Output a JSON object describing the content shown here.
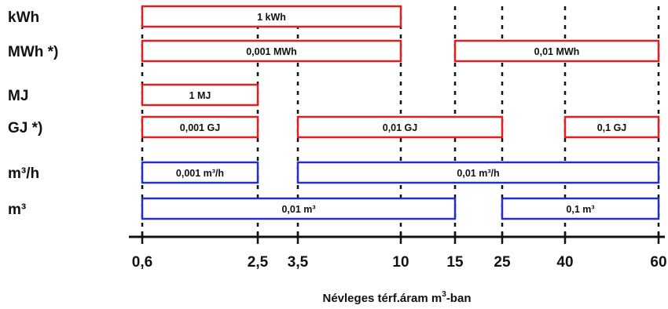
{
  "colors": {
    "energy": "#e02020",
    "flow": "#2030c8",
    "ink": "#111111"
  },
  "chart_data": {
    "type": "range-bars",
    "xlabel": "Névleges térf.áram m",
    "xlabel_sup": "3",
    "xlabel_suffix": "-ban",
    "ticks": [
      "0,6",
      "2,5",
      "3,5",
      "10",
      "15",
      "25",
      "40",
      "60"
    ],
    "rows": [
      {
        "label": "kWh",
        "color": "energy",
        "bars": [
          {
            "from": "0,6",
            "to": "10",
            "text": "1 kWh"
          }
        ]
      },
      {
        "label": "MWh *)",
        "color": "energy",
        "bars": [
          {
            "from": "0,6",
            "to": "10",
            "text": "0,001 MWh"
          },
          {
            "from": "15",
            "to": "60",
            "text": "0,01 MWh"
          }
        ]
      },
      {
        "label": "MJ",
        "color": "energy",
        "bars": [
          {
            "from": "0,6",
            "to": "2,5",
            "text": "1 MJ"
          }
        ]
      },
      {
        "label": "GJ *)",
        "color": "energy",
        "bars": [
          {
            "from": "0,6",
            "to": "2,5",
            "text": "0,001 GJ"
          },
          {
            "from": "3,5",
            "to": "25",
            "text": "0,01 GJ"
          },
          {
            "from": "40",
            "to": "60",
            "text": "0,1 GJ"
          }
        ]
      },
      {
        "label": "m³/h",
        "color": "flow",
        "bars": [
          {
            "from": "0,6",
            "to": "2,5",
            "text": "0,001 m³/h"
          },
          {
            "from": "3,5",
            "to": "60",
            "text": "0,01 m³/h"
          }
        ]
      },
      {
        "label": "m³",
        "color": "flow",
        "bars": [
          {
            "from": "0,6",
            "to": "15",
            "text": "0,01 m³"
          },
          {
            "from": "25",
            "to": "60",
            "text": "0,1 m³"
          }
        ]
      }
    ],
    "dotted_guides": [
      "0,6",
      "2,5",
      "3,5",
      "10",
      "15",
      "25",
      "40",
      "60"
    ]
  }
}
